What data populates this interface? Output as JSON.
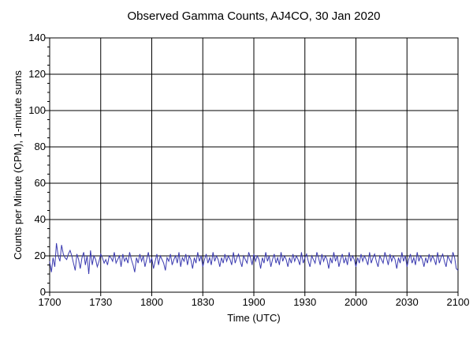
{
  "chart_data": {
    "type": "line",
    "title": "Observed Gamma Counts, AJ4CO, 30 Jan 2020",
    "xlabel": "Time (UTC)",
    "ylabel": "Counts per Minute (CPM), 1-minute sums",
    "x_ticks": [
      "1700",
      "1730",
      "1800",
      "1830",
      "1900",
      "1930",
      "2000",
      "2030",
      "2100"
    ],
    "y_ticks": [
      "0",
      "20",
      "40",
      "60",
      "80",
      "100",
      "120",
      "140"
    ],
    "xlim_minutes_after_1700": [
      0,
      240
    ],
    "ylim": [
      0,
      140
    ],
    "grid": true,
    "line_color": "#3a3ab0",
    "series": [
      {
        "x_start": "1700",
        "x_step_minutes": 1,
        "values": [
          17,
          11,
          19,
          14,
          27,
          20,
          17,
          26,
          21,
          19,
          18,
          21,
          23,
          20,
          16,
          12,
          21,
          18,
          13,
          19,
          22,
          15,
          20,
          10,
          23,
          15,
          20,
          18,
          14,
          17,
          21,
          19,
          16,
          18,
          15,
          20,
          19,
          17,
          22,
          16,
          18,
          20,
          14,
          21,
          17,
          19,
          16,
          22,
          18,
          15,
          11,
          19,
          16,
          21,
          17,
          20,
          14,
          18,
          22,
          16,
          19,
          13,
          17,
          21,
          15,
          20,
          18,
          16,
          12,
          19,
          17,
          21,
          15,
          18,
          20,
          16,
          22,
          14,
          19,
          17,
          21,
          15,
          20,
          18,
          13,
          19,
          16,
          22,
          17,
          20,
          14,
          18,
          21,
          16,
          19,
          15,
          22,
          17,
          20,
          18,
          14,
          19,
          16,
          21,
          17,
          20,
          18,
          15,
          22,
          16,
          19,
          21,
          17,
          14,
          20,
          18,
          16,
          22,
          19,
          15,
          21,
          17,
          20,
          18,
          13,
          19,
          16,
          22,
          17,
          20,
          14,
          18,
          21,
          16,
          19,
          15,
          22,
          17,
          20,
          18,
          14,
          19,
          16,
          21,
          17,
          20,
          18,
          15,
          22,
          16,
          19,
          21,
          17,
          14,
          20,
          18,
          16,
          22,
          19,
          15,
          21,
          17,
          20,
          18,
          13,
          19,
          16,
          22,
          17,
          20,
          14,
          18,
          21,
          16,
          19,
          15,
          22,
          17,
          20,
          18,
          14,
          19,
          16,
          21,
          17,
          20,
          18,
          15,
          22,
          16,
          19,
          21,
          17,
          14,
          20,
          18,
          16,
          22,
          19,
          15,
          21,
          17,
          20,
          18,
          13,
          19,
          16,
          22,
          17,
          20,
          14,
          18,
          21,
          16,
          19,
          15,
          22,
          17,
          20,
          18,
          14,
          19,
          16,
          21,
          17,
          20,
          18,
          15,
          22,
          16,
          19,
          21,
          17,
          14,
          20,
          18,
          16,
          22,
          19,
          13,
          12
        ]
      }
    ]
  }
}
